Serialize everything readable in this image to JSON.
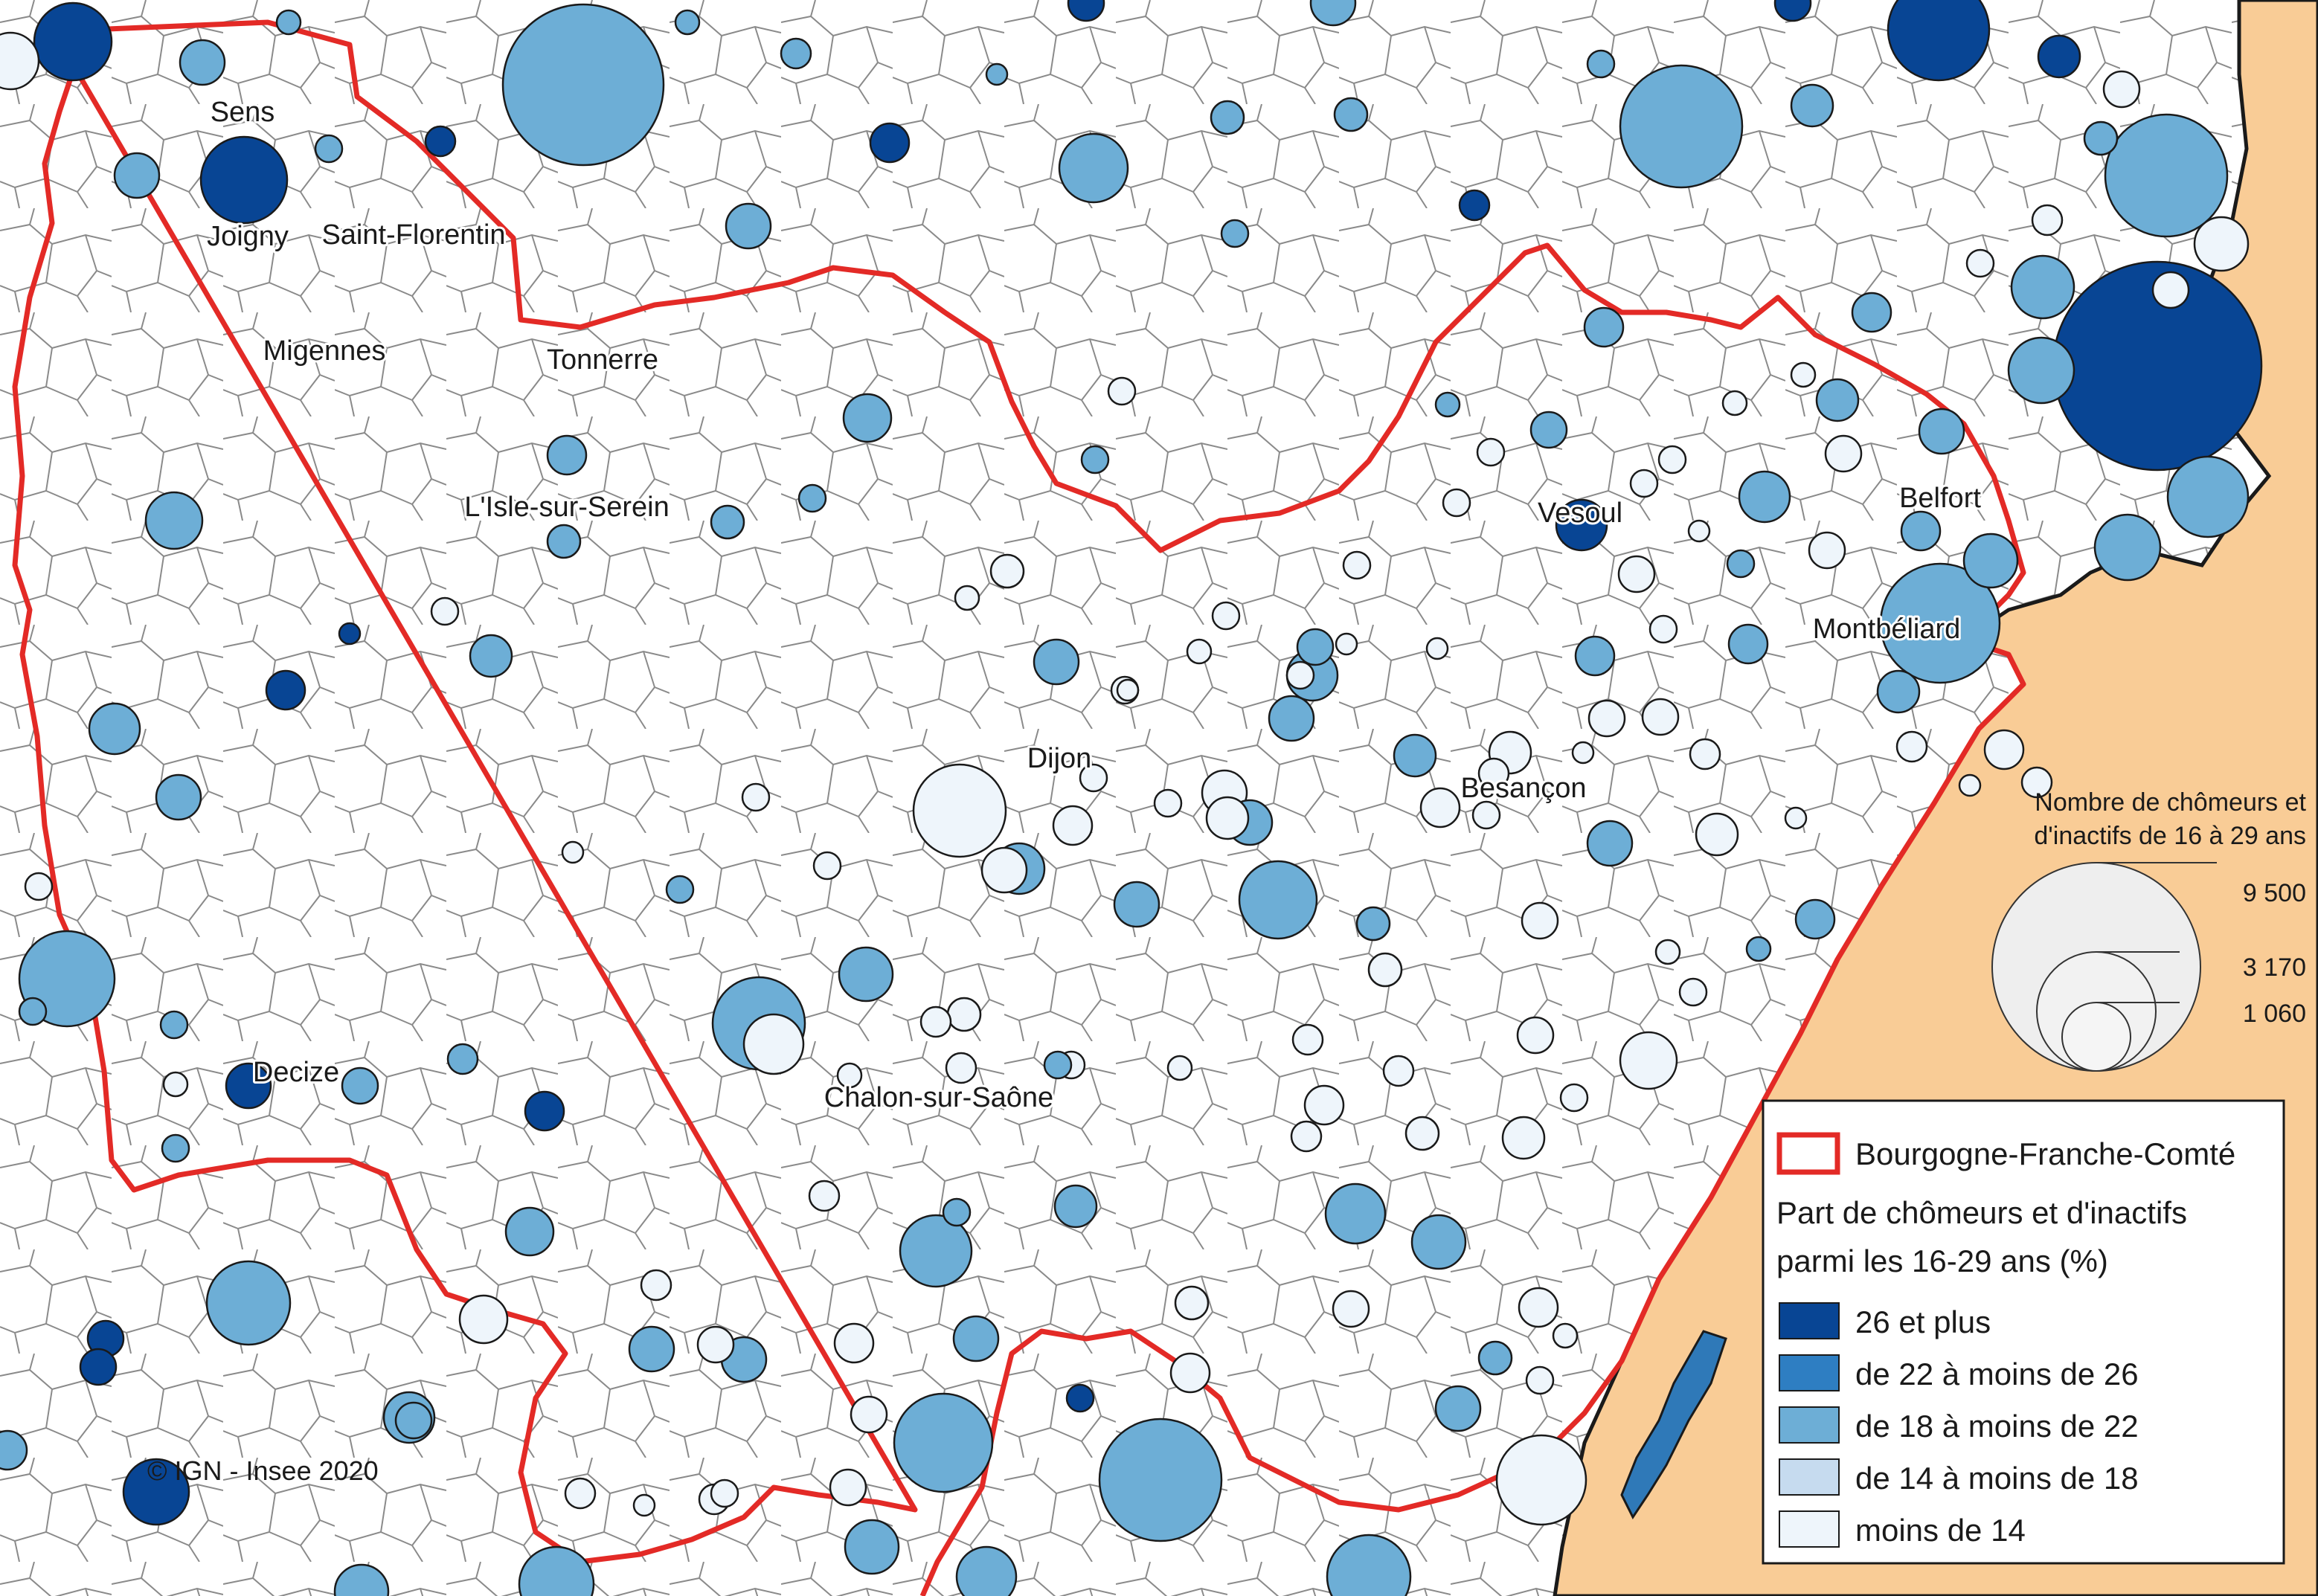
{
  "region_label": "Bourgogne-Franche-Comté",
  "credit": "© IGN - Insee 2020",
  "colors": {
    "region_border": "#e32a26",
    "neighbour_area": "#f9cc96",
    "lake": "#2f79b8",
    "commune_border": "#8a8a8a",
    "circle_stroke": "#1a1a1a"
  },
  "cities": [
    {
      "name": "Sens"
    },
    {
      "name": "Joigny"
    },
    {
      "name": "Saint-Florentin"
    },
    {
      "name": "Migennes"
    },
    {
      "name": "Tonnerre"
    },
    {
      "name": "L'Isle-sur-Serein"
    },
    {
      "name": "Vesoul"
    },
    {
      "name": "Belfort"
    },
    {
      "name": "Montbéliard"
    },
    {
      "name": "Dijon"
    },
    {
      "name": "Besançon"
    },
    {
      "name": "Chalon-sur-Saône"
    },
    {
      "name": "Decize"
    }
  ],
  "size_legend": {
    "title_line1": "Nombre de chômeurs et",
    "title_line2": "d'inactifs de 16 à 29 ans",
    "values": [
      "9 500",
      "3 170",
      "1 060"
    ]
  },
  "legend": {
    "region_entry": "Bourgogne-Franche-Comté",
    "title_line1": "Part de chômeurs et d'inactifs",
    "title_line2": "parmi les 16-29 ans (%)",
    "classes": [
      {
        "label": "26 et plus",
        "color": "#084594"
      },
      {
        "label": "de 22 à moins de 26",
        "color": "#2e7ec2"
      },
      {
        "label": "de 18 à moins de 22",
        "color": "#6daed6"
      },
      {
        "label": "de 14 à moins de 18",
        "color": "#c6dbef"
      },
      {
        "label": "moins de 14",
        "color": "#eef5fb"
      }
    ]
  }
}
